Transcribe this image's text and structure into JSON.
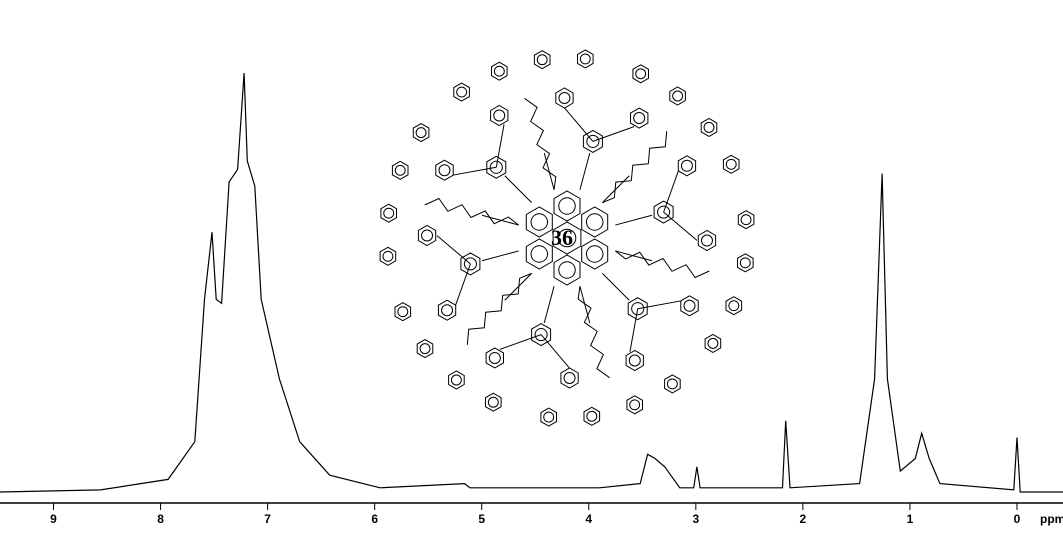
{
  "chart_data": {
    "type": "line",
    "color": "#000000",
    "x": [
      9.5,
      8.56,
      7.93,
      7.68,
      7.59,
      7.52,
      7.48,
      7.43,
      7.36,
      7.28,
      7.22,
      7.19,
      7.12,
      7.06,
      6.89,
      6.7,
      6.42,
      5.95,
      5.16,
      5.11,
      3.9,
      3.52,
      3.45,
      3.38,
      3.29,
      3.15,
      3.02,
      2.99,
      2.96,
      2.4,
      2.19,
      2.16,
      2.12,
      1.47,
      1.33,
      1.26,
      1.21,
      1.09,
      0.95,
      0.89,
      0.82,
      0.72,
      0.03,
      0.0,
      -0.03,
      -0.43
    ],
    "values": [
      0,
      0.5,
      3,
      12,
      46,
      62,
      46,
      45,
      74,
      77,
      100,
      79,
      73,
      46,
      27,
      12,
      4,
      1,
      2,
      1,
      1,
      2,
      9,
      8,
      6,
      1,
      1,
      6,
      1,
      1,
      1,
      17,
      1,
      2,
      27,
      76,
      27,
      5,
      8,
      14,
      8,
      2,
      0.5,
      13,
      0,
      0
    ],
    "xlim": [
      9.5,
      -0.43
    ],
    "ylim": [
      0,
      100
    ],
    "xticks": [
      9,
      8,
      7,
      6,
      5,
      4,
      3,
      2,
      1,
      0
    ],
    "x_unit": "ppm",
    "annotation": "36"
  }
}
